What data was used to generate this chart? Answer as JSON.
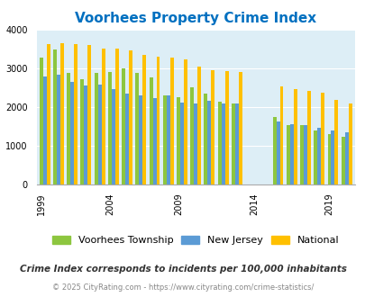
{
  "title": "Voorhees Property Crime Index",
  "years": [
    1999,
    2000,
    2001,
    2002,
    2003,
    2004,
    2005,
    2006,
    2007,
    2008,
    2009,
    2010,
    2011,
    2012,
    2013,
    2015,
    2016,
    2017,
    2018,
    2019,
    2020
  ],
  "voorhees": [
    3280,
    3490,
    2870,
    2720,
    2890,
    2910,
    3000,
    2870,
    2760,
    2310,
    2250,
    2500,
    2350,
    2130,
    2100,
    1730,
    1540,
    1530,
    1400,
    1290,
    1230
  ],
  "new_jersey": [
    2780,
    2840,
    2640,
    2550,
    2580,
    2450,
    2350,
    2300,
    2220,
    2310,
    2110,
    2080,
    2150,
    2080,
    2080,
    1630,
    1560,
    1530,
    1450,
    1380,
    1350
  ],
  "national": [
    3620,
    3660,
    3630,
    3600,
    3510,
    3510,
    3460,
    3340,
    3300,
    3280,
    3230,
    3050,
    2960,
    2930,
    2900,
    2520,
    2460,
    2410,
    2370,
    2190,
    2100
  ],
  "voorhees_color": "#8dc63f",
  "nj_color": "#5b9bd5",
  "national_color": "#ffc000",
  "bg_color": "#ddeef6",
  "title_color": "#0070c0",
  "footnote1": "Crime Index corresponds to incidents per 100,000 inhabitants",
  "footnote2": "© 2025 CityRating.com - https://www.cityrating.com/crime-statistics/",
  "footnote1_color": "#333333",
  "footnote2_color": "#888888",
  "ylim": [
    0,
    4000
  ],
  "yticks": [
    0,
    1000,
    2000,
    3000,
    4000
  ],
  "xtick_years": [
    1999,
    2004,
    2009,
    2014,
    2019
  ],
  "legend_labels": [
    "Voorhees Township",
    "New Jersey",
    "National"
  ]
}
